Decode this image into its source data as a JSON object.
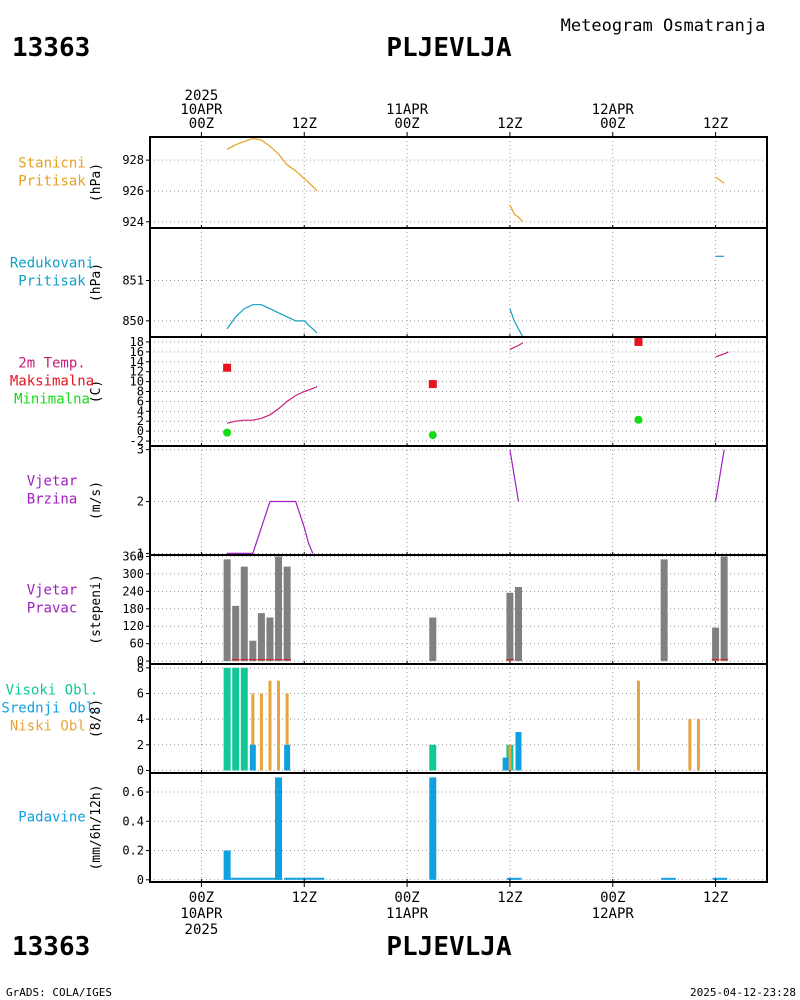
{
  "header": {
    "station_id": "13363",
    "station_name": "PLJEVLJA",
    "product": "Meteogram Osmatranja",
    "footer_left": "GrADS: COLA/IGES",
    "footer_right": "2025-04-12-23:28"
  },
  "colors": {
    "pressure": "#e6a020",
    "reduced": "#10a0c8",
    "temp_line": "#c81e78",
    "tmax": "#e6141e",
    "tmin": "#14dc14",
    "wind_speed": "#a020c0",
    "wind_dir": "#808080",
    "cloud_high": "#12c896",
    "cloud_low": "#e6a53c",
    "cloud_mid": "#10a0e0",
    "precip": "#10a0e0"
  },
  "time_axis": {
    "range_hours": [
      -6,
      66
    ],
    "top_labels": [
      {
        "h": 0,
        "lines": [
          "2025",
          "10APR",
          "00Z"
        ]
      },
      {
        "h": 12,
        "lines": [
          "12Z"
        ]
      },
      {
        "h": 24,
        "lines": [
          "11APR",
          "00Z"
        ]
      },
      {
        "h": 36,
        "lines": [
          "12Z"
        ]
      },
      {
        "h": 48,
        "lines": [
          "12APR",
          "00Z"
        ]
      },
      {
        "h": 60,
        "lines": [
          "12Z"
        ]
      }
    ],
    "bottom_labels": [
      {
        "h": 0,
        "lines": [
          "00Z",
          "10APR",
          "2025"
        ]
      },
      {
        "h": 12,
        "lines": [
          "12Z"
        ]
      },
      {
        "h": 24,
        "lines": [
          "00Z",
          "11APR"
        ]
      },
      {
        "h": 36,
        "lines": [
          "12Z"
        ]
      },
      {
        "h": 48,
        "lines": [
          "00Z",
          "12APR"
        ]
      },
      {
        "h": 60,
        "lines": [
          "12Z"
        ]
      }
    ]
  },
  "chart_data": [
    {
      "type": "line",
      "id": "station-pressure",
      "labels": [
        "Stanicni",
        "Pritisak"
      ],
      "ylabel": "(hPa)",
      "ylim": [
        923.6,
        929.5
      ],
      "yticks": [
        924,
        926,
        928
      ],
      "series": [
        {
          "color_key": "pressure",
          "points": [
            [
              3,
              928.7
            ],
            [
              4,
              929.0
            ],
            [
              5,
              929.2
            ],
            [
              6,
              929.4
            ],
            [
              7,
              929.3
            ],
            [
              8,
              928.9
            ],
            [
              9,
              928.4
            ],
            [
              10,
              927.7
            ],
            [
              11,
              927.3
            ],
            [
              12,
              926.8
            ],
            [
              13,
              926.3
            ],
            [
              13.5,
              926.0
            ]
          ]
        },
        {
          "color_key": "pressure",
          "points": [
            [
              36,
              925.1
            ],
            [
              36.5,
              924.5
            ],
            [
              37,
              924.3
            ],
            [
              37.5,
              924.0
            ]
          ]
        },
        {
          "color_key": "pressure",
          "points": [
            [
              60,
              926.9
            ],
            [
              60.5,
              926.7
            ],
            [
              61,
              926.5
            ]
          ]
        }
      ]
    },
    {
      "type": "line",
      "id": "reduced-pressure",
      "labels": [
        "Redukovani",
        "Pritisak"
      ],
      "ylabel": "(hPa)",
      "ylim": [
        849.6,
        852.3
      ],
      "yticks": [
        850,
        851
      ],
      "series": [
        {
          "color_key": "reduced",
          "points": [
            [
              3,
              849.8
            ],
            [
              4,
              850.1
            ],
            [
              5,
              850.3
            ],
            [
              6,
              850.4
            ],
            [
              7,
              850.4
            ],
            [
              8,
              850.3
            ],
            [
              9,
              850.2
            ],
            [
              10,
              850.1
            ],
            [
              11,
              850.0
            ],
            [
              12,
              850.0
            ],
            [
              13,
              849.8
            ],
            [
              13.5,
              849.7
            ]
          ]
        },
        {
          "color_key": "reduced",
          "points": [
            [
              36,
              850.3
            ],
            [
              36.5,
              850.0
            ],
            [
              37,
              849.8
            ],
            [
              37.5,
              849.6
            ]
          ]
        },
        {
          "color_key": "reduced",
          "points": [
            [
              60,
              851.6
            ],
            [
              61,
              851.6
            ]
          ]
        }
      ]
    },
    {
      "type": "line",
      "id": "temperature",
      "labels": [
        "2m Temp.",
        "Maksimalna",
        "Minimalna"
      ],
      "label_color_keys": [
        "temp_line",
        "tmax",
        "tmin"
      ],
      "ylabel": "(C)",
      "ylim": [
        -3,
        19
      ],
      "yticks": [
        -2,
        0,
        2,
        4,
        6,
        8,
        10,
        12,
        14,
        16,
        18
      ],
      "series": [
        {
          "color_key": "temp_line",
          "points": [
            [
              3,
              1.6
            ],
            [
              4,
              2.0
            ],
            [
              5,
              2.2
            ],
            [
              6,
              2.2
            ],
            [
              7,
              2.6
            ],
            [
              8,
              3.3
            ],
            [
              9,
              4.5
            ],
            [
              10,
              6.0
            ],
            [
              11,
              7.2
            ],
            [
              12,
              8.0
            ],
            [
              13,
              8.6
            ],
            [
              13.5,
              9.0
            ]
          ]
        },
        {
          "color_key": "temp_line",
          "points": [
            [
              36,
              16.5
            ],
            [
              37,
              17.3
            ],
            [
              37.5,
              17.8
            ]
          ]
        },
        {
          "color_key": "temp_line",
          "points": [
            [
              60,
              15.0
            ],
            [
              61,
              15.6
            ],
            [
              61.5,
              16.0
            ]
          ]
        }
      ],
      "tmax": [
        [
          3,
          12.8
        ],
        [
          27,
          9.5
        ],
        [
          51,
          18.0
        ]
      ],
      "tmin": [
        [
          3,
          -0.3
        ],
        [
          27,
          -0.8
        ],
        [
          51,
          2.3
        ]
      ]
    },
    {
      "type": "line",
      "id": "wind-speed",
      "labels": [
        "Vjetar",
        "Brzina"
      ],
      "ylabel": "(m/s)",
      "ylim": [
        0.97,
        3.07
      ],
      "yticks": [
        1,
        2,
        3
      ],
      "series": [
        {
          "color_key": "wind_speed",
          "points": [
            [
              3,
              1
            ],
            [
              4,
              1
            ],
            [
              5,
              1
            ],
            [
              6,
              1
            ],
            [
              7,
              1.5
            ],
            [
              8,
              2
            ],
            [
              9,
              2
            ],
            [
              10,
              2
            ],
            [
              11,
              2
            ],
            [
              12,
              1.5
            ],
            [
              12.5,
              1.2
            ],
            [
              13,
              1
            ]
          ]
        },
        {
          "color_key": "wind_speed",
          "points": [
            [
              36,
              3
            ],
            [
              37,
              2
            ]
          ]
        },
        {
          "color_key": "wind_speed",
          "points": [
            [
              60,
              2
            ],
            [
              61,
              3
            ]
          ]
        }
      ]
    },
    {
      "type": "bar",
      "id": "wind-direction",
      "labels": [
        "Vjetar",
        "Pravac"
      ],
      "ylabel": "(stepeni)",
      "ylim": [
        -10,
        365
      ],
      "yticks": [
        0,
        60,
        120,
        180,
        240,
        300,
        360
      ],
      "bars": [
        [
          3,
          350
        ],
        [
          4,
          190
        ],
        [
          5,
          325
        ],
        [
          6,
          70
        ],
        [
          7,
          165
        ],
        [
          8,
          150
        ],
        [
          9,
          360
        ],
        [
          10,
          325
        ],
        [
          27,
          150
        ],
        [
          36,
          235
        ],
        [
          37,
          255
        ],
        [
          54,
          350
        ],
        [
          60,
          115
        ],
        [
          61,
          360
        ]
      ],
      "small_marks": [
        [
          4,
          5
        ],
        [
          5,
          5
        ],
        [
          6,
          5
        ],
        [
          7,
          5
        ],
        [
          8,
          5
        ],
        [
          9,
          5
        ],
        [
          10,
          5
        ],
        [
          36,
          5
        ],
        [
          60,
          5
        ],
        [
          61,
          5
        ]
      ]
    },
    {
      "type": "bar",
      "id": "clouds",
      "labels": [
        "Visoki Obl.",
        "Srednji Obl.",
        "Niski Obl."
      ],
      "label_color_keys": [
        "cloud_high",
        "cloud_mid",
        "cloud_low"
      ],
      "ylabel": "(8/8)",
      "ylim": [
        -0.2,
        8.3
      ],
      "yticks": [
        0,
        2,
        4,
        6,
        8
      ],
      "high": [
        [
          3,
          8
        ],
        [
          4,
          8
        ],
        [
          5,
          8
        ],
        [
          27,
          2
        ],
        [
          36,
          2
        ]
      ],
      "low": [
        [
          6,
          6
        ],
        [
          7,
          6
        ],
        [
          8,
          7
        ],
        [
          9,
          7
        ],
        [
          10,
          6
        ],
        [
          36,
          2
        ],
        [
          51,
          7
        ],
        [
          57,
          4
        ],
        [
          58,
          4
        ]
      ],
      "mid": [
        [
          6,
          2
        ],
        [
          10,
          2
        ],
        [
          35.5,
          1
        ],
        [
          37,
          3
        ]
      ]
    },
    {
      "type": "bar",
      "id": "precipitation",
      "labels": [
        "Padavine"
      ],
      "ylabel": "(mm/6h/12h)",
      "ylim": [
        -0.015,
        0.73
      ],
      "yticks": [
        0,
        0.2,
        0.4,
        0.6
      ],
      "bars": [
        [
          3,
          0.2
        ],
        [
          9,
          0.7
        ],
        [
          27,
          0.7
        ]
      ],
      "trace": [
        [
          3,
          9
        ],
        [
          10,
          14
        ],
        [
          36,
          37
        ],
        [
          54,
          55
        ],
        [
          60,
          61
        ]
      ]
    }
  ]
}
